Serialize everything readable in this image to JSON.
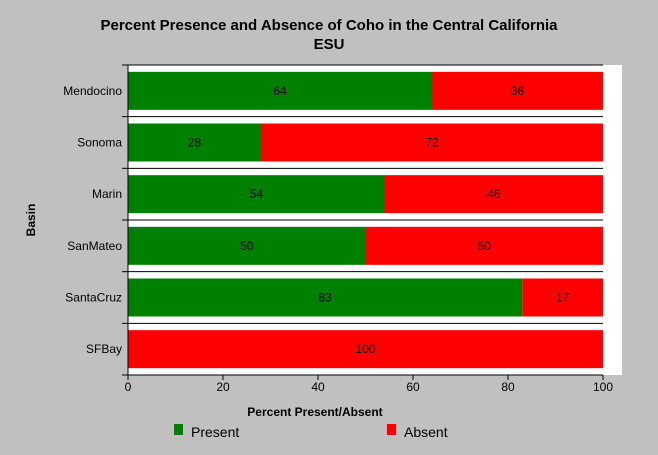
{
  "chart_data": {
    "type": "bar",
    "orientation": "horizontal",
    "stacked": true,
    "title": "Percent Presence and Absence of Coho in the Central California ESU",
    "title_lines": [
      "Percent Presence and Absence of Coho in the Central California",
      "ESU"
    ],
    "xlabel": "Percent Present/Absent",
    "ylabel": "Basin",
    "xlim": [
      0,
      100
    ],
    "x_ticks": [
      "0",
      "20",
      "40",
      "60",
      "80",
      "100"
    ],
    "categories": [
      "Mendocino",
      "Sonoma",
      "Marin",
      "SanMateo",
      "SantaCruz",
      "SFBay"
    ],
    "series": [
      {
        "name": "Present",
        "color": "#008000",
        "values": [
          64,
          28,
          54,
          50,
          83,
          0
        ]
      },
      {
        "name": "Absent",
        "color": "#ff0000",
        "values": [
          36,
          72,
          46,
          50,
          17,
          100
        ]
      }
    ],
    "legend_position": "bottom",
    "grid": false
  }
}
